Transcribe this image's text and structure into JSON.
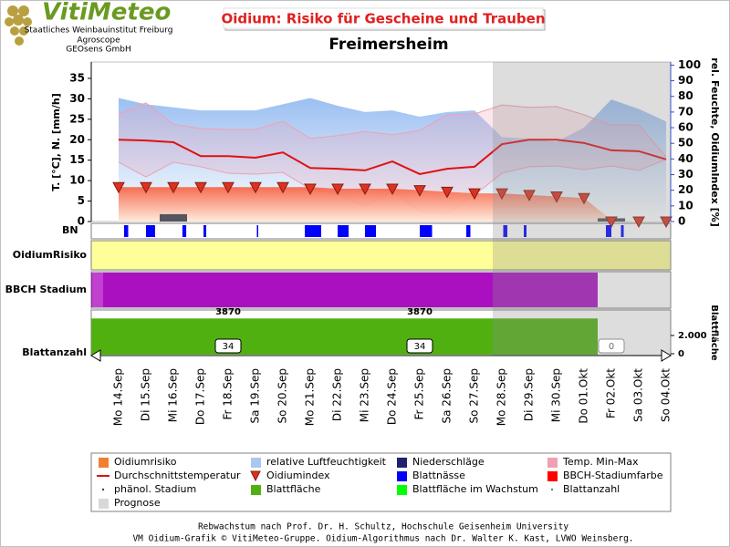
{
  "header": {
    "logo": "VitiMeteo",
    "org_lines": [
      "Staatliches Weinbauinstitut Freiburg",
      "Agroscope",
      "GEOsens GmbH"
    ]
  },
  "chart_data": {
    "type": "line",
    "title": "Oidium: Risiko für Gescheine und Trauben",
    "subtitle": "Freimersheim",
    "ylabel": "T. [°C], N. [mm/h]",
    "y2label": "rel. Feuchte, OidiumIndex [%]",
    "y3label": "Blattfläche",
    "row_labels": [
      "BN",
      "OidiumRisiko",
      "BBCH Stadium",
      "Blattanzahl"
    ],
    "risk_row_color": "#ffff99",
    "bbch_color": "#aa10c0",
    "categories": [
      "Mo 14.Sep",
      "Di 15.Sep",
      "Mi 16.Sep",
      "Do 17.Sep",
      "Fr 18.Sep",
      "Sa 19.Sep",
      "So 20.Sep",
      "Mo 21.Sep",
      "Di 22.Sep",
      "Mi 23.Sep",
      "Do 24.Sep",
      "Fr 25.Sep",
      "Sa 26.Sep",
      "So 27.Sep",
      "Mo 28.Sep",
      "Di 29.Sep",
      "Mi 30.Sep",
      "Do 01.Okt",
      "Fr 02.Okt",
      "Sa 03.Okt",
      "So 04.Okt"
    ],
    "ylim": [
      0,
      39
    ],
    "yticks": [
      0,
      5,
      10,
      15,
      20,
      25,
      30,
      35
    ],
    "y2lim": [
      0,
      102
    ],
    "y2ticks": [
      0,
      10,
      20,
      30,
      40,
      50,
      60,
      70,
      80,
      90,
      100
    ],
    "y3lim": [
      0,
      5200
    ],
    "y3ticks": [
      0,
      {
        "value": 2000,
        "label": "2.000"
      }
    ],
    "series": [
      {
        "name": "Oidiumrisiko",
        "color": "#f08030",
        "symbol": "square",
        "axis": "y2",
        "values": [
          22,
          22,
          22,
          22,
          22,
          22,
          22,
          22,
          21,
          21,
          21,
          20,
          19,
          18,
          18,
          17,
          16,
          15,
          1,
          0,
          0
        ]
      },
      {
        "name": "relative Luftfeuchtigkeit",
        "color": "#a8c8f0",
        "symbol": "square",
        "axis": "y2",
        "values": [
          79,
          75,
          73,
          71,
          71,
          71,
          75,
          79,
          74,
          70,
          71,
          67,
          70,
          71,
          54,
          53,
          51,
          60,
          78,
          72,
          64
        ]
      },
      {
        "name": "Niederschläge",
        "color": "#202070",
        "symbol": "square",
        "values": [
          0,
          0,
          1.8,
          0,
          0,
          0,
          0,
          0,
          0,
          0,
          0,
          0,
          0,
          0,
          0,
          0,
          0,
          0,
          0.8,
          0,
          0
        ]
      },
      {
        "name": "Temp. Min-Max",
        "color": "#f0a0b0",
        "symbol": "square",
        "high": [
          26.3,
          29,
          23.8,
          22.7,
          22.5,
          22.5,
          24.5,
          20.3,
          21,
          22,
          21.2,
          22.3,
          26.1,
          26.3,
          28.5,
          27.9,
          28.1,
          26.1,
          23.6,
          23.6,
          15.8
        ],
        "low": [
          14.5,
          10.9,
          14.5,
          13.4,
          11.8,
          11.6,
          12,
          8,
          6.7,
          3.6,
          7.4,
          2.5,
          2,
          6.5,
          11.8,
          13.4,
          13.6,
          12.7,
          13.6,
          12.5,
          15.2
        ]
      },
      {
        "name": "Durchschnittstemperatur",
        "color": "#e01010",
        "symbol": "line",
        "values": [
          20,
          19.8,
          19.4,
          16,
          16,
          15.6,
          16.9,
          13.1,
          12.9,
          12.5,
          14.7,
          11.6,
          12.9,
          13.4,
          18.9,
          20,
          20,
          19.2,
          17.4,
          17.2,
          15.2
        ]
      },
      {
        "name": "Oidiumindex",
        "color": "#e03020",
        "symbol": "triangle",
        "axis": "y2",
        "values": [
          22,
          22,
          22,
          22,
          22,
          22,
          22,
          21,
          21,
          21,
          21,
          20,
          19,
          18,
          18,
          17,
          16,
          15,
          0,
          0,
          0
        ]
      },
      {
        "name": "Blattnässe",
        "color": "#0000ff",
        "symbol": "square",
        "intervals": [
          [
            0.2,
            0.35
          ],
          [
            1,
            1.33
          ],
          [
            2.33,
            2.47
          ],
          [
            3.1,
            3.2
          ],
          [
            5.05,
            5.1
          ],
          [
            6.8,
            7.4
          ],
          [
            8,
            8.4
          ],
          [
            9,
            9.4
          ],
          [
            11,
            11.45
          ],
          [
            12.7,
            12.85
          ],
          [
            14.05,
            14.2
          ],
          [
            14.8,
            14.9
          ],
          [
            17.8,
            18
          ],
          [
            18.35,
            18.45
          ]
        ]
      },
      {
        "name": "BBCH-Stadiumfarbe",
        "color": "#ff0000",
        "symbol": "square"
      },
      {
        "name": "phänol. Stadium",
        "color": "#404040",
        "symbol": "dot"
      },
      {
        "name": "Blattfläche",
        "color": "#50b010",
        "symbol": "square",
        "axis": "y3",
        "values": [
          3870,
          3870,
          3870,
          3870,
          3870,
          3870,
          3870,
          3870,
          3870,
          3870,
          3870,
          3870,
          3870,
          3870,
          3870,
          3870,
          3870,
          3870,
          0,
          0,
          0
        ],
        "label_at": [
          4,
          11
        ]
      },
      {
        "name": "Blattfläche im Wachstum",
        "color": "#00ff00",
        "symbol": "square"
      },
      {
        "name": "Blattanzahl",
        "color": "#40a040",
        "symbol": "dot",
        "values": [
          34,
          34,
          34,
          34,
          34,
          34,
          34,
          34,
          34,
          34,
          34,
          34,
          34,
          34,
          34,
          34,
          34,
          34,
          0,
          0,
          0
        ],
        "label_at": [
          4,
          11,
          18
        ]
      },
      {
        "name": "Prognose",
        "color": "#d8d8d8",
        "symbol": "square",
        "from_index": 14
      }
    ]
  },
  "footer": [
    "Rebwachstum nach Prof. Dr. H. Schultz, Hochschule Geisenheim University",
    "VM Oidium-Grafik © VitiMeteo-Gruppe. Oidium-Algorithmus nach Dr. Walter K. Kast, LVWO Weinsberg."
  ]
}
